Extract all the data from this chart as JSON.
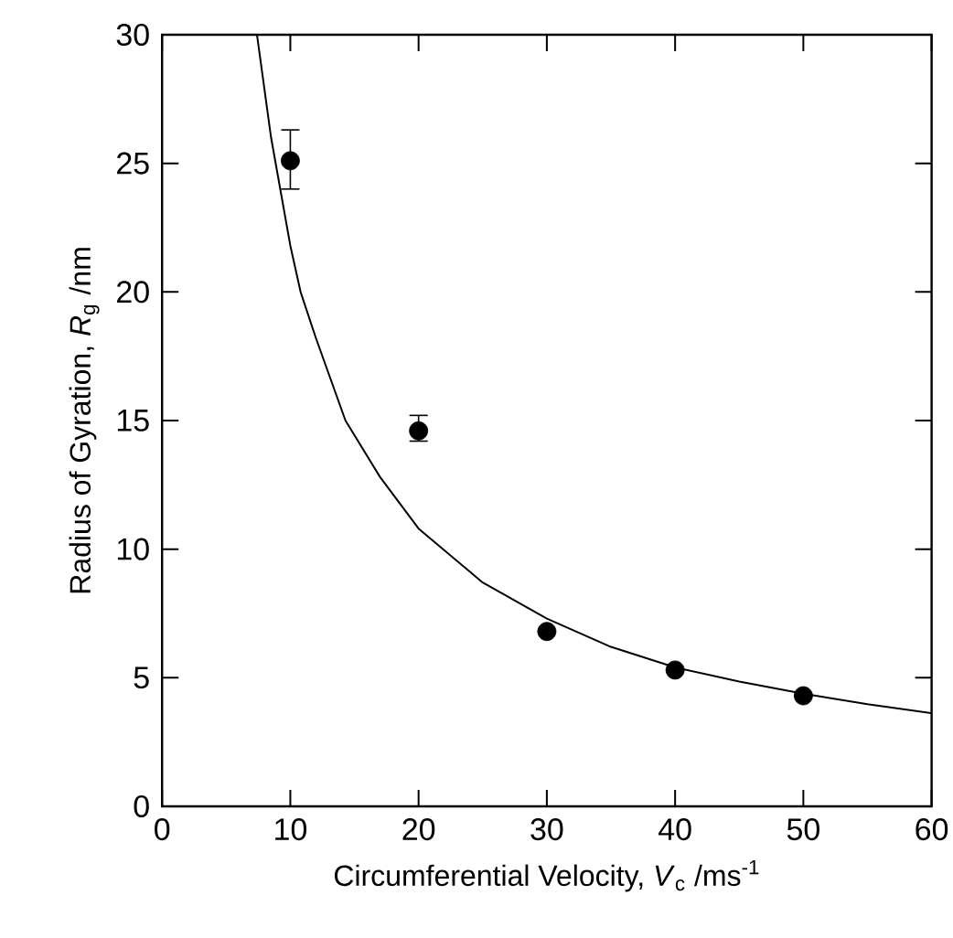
{
  "chart_data": {
    "type": "scatter",
    "xlabel": "Circumferential Velocity, *V*$_{c}$ /ms$^{-1}$",
    "ylabel": "Radius of Gyration, *R*$_{g}$ /nm",
    "xlim": [
      0,
      60
    ],
    "ylim": [
      0,
      30
    ],
    "xticks": [
      0,
      10,
      20,
      30,
      40,
      50,
      60
    ],
    "yticks": [
      0,
      5,
      10,
      15,
      20,
      25,
      30
    ],
    "series": [
      {
        "color": "#000000",
        "marker": "circle",
        "x": [
          10,
          20,
          30,
          40,
          50
        ],
        "values": [
          25.1,
          14.6,
          6.8,
          5.3,
          4.3
        ],
        "errors": [
          [
            24.0,
            26.3
          ],
          [
            14.2,
            15.2
          ],
          null,
          null,
          null
        ]
      },
      {
        "type": "line",
        "color": "#000000",
        "line_style": "solid",
        "x": [
          7.4,
          8.5,
          10,
          10.8,
          12,
          14.3,
          17,
          20,
          25,
          30,
          35,
          40,
          45,
          50,
          55,
          60
        ],
        "values": [
          30,
          26,
          21.8,
          20,
          18.2,
          15,
          12.8,
          10.8,
          8.7,
          7.3,
          6.2,
          5.4,
          4.85,
          4.38,
          3.97,
          3.62
        ]
      }
    ]
  }
}
